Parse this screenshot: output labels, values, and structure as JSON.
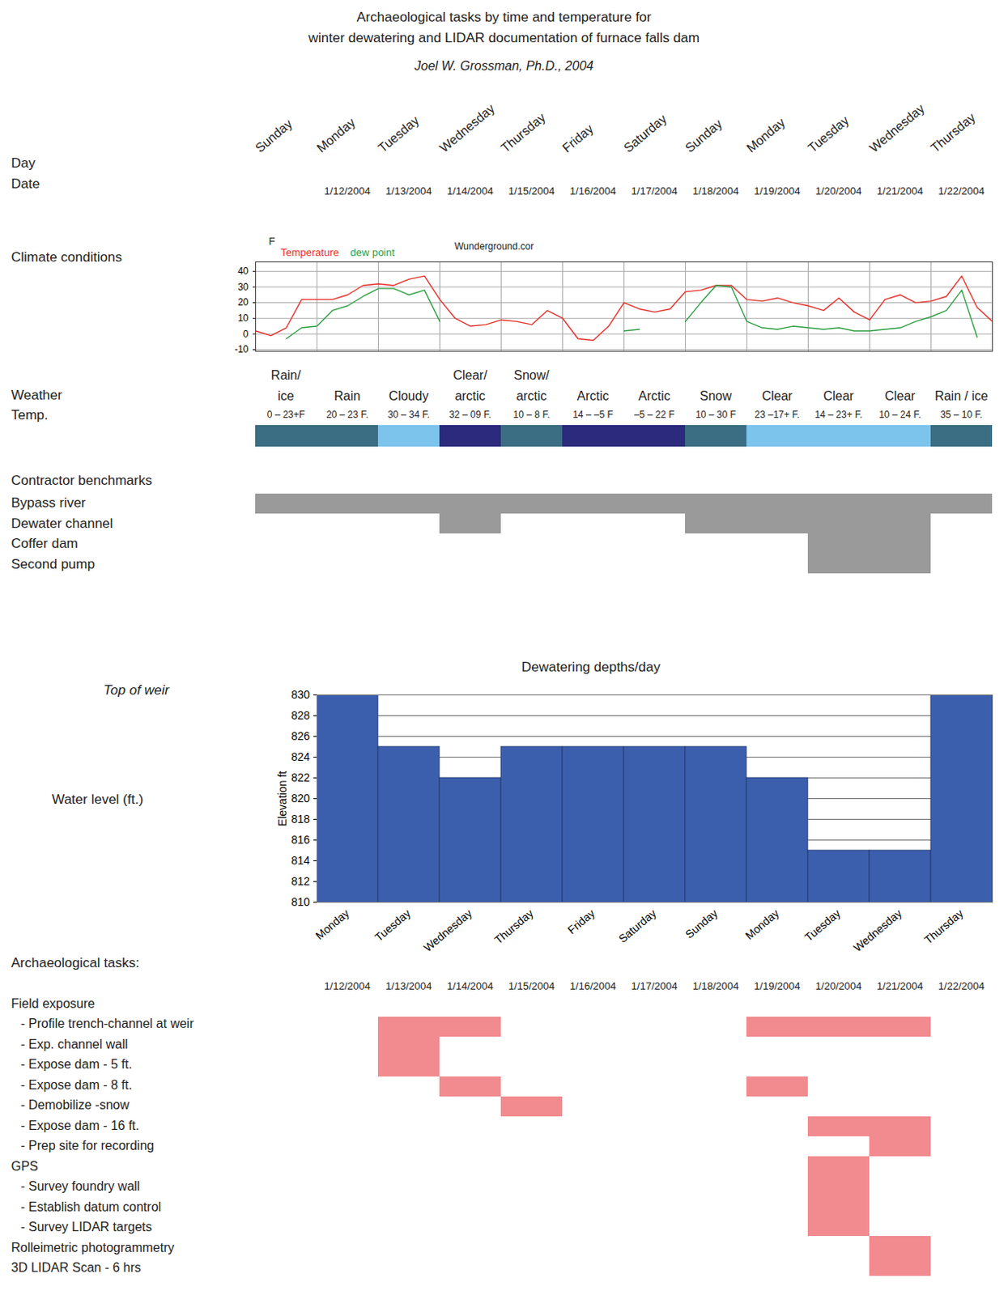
{
  "title_lines": [
    "Archaeological tasks by time and temperature for",
    "winter dewatering and LIDAR documentation of furnace falls dam"
  ],
  "subtitle": "Joel W. Grossman, Ph.D., 2004",
  "labels": {
    "day": "Day",
    "date": "Date",
    "climate": "Climate conditions",
    "weather": "Weather",
    "temp": "Temp.",
    "contractor": "Contractor benchmarks",
    "weir": "Top of weir",
    "water": "Water level (ft.)",
    "tasks": "Archaeological tasks:"
  },
  "days": [
    "Sunday",
    "Monday",
    "Tuesday",
    "Wednesday",
    "Thursday",
    "Friday",
    "Saturday",
    "Sunday",
    "Monday",
    "Tuesday",
    "Wednesday",
    "Thursday"
  ],
  "dates": [
    null,
    "1/12/2004",
    "1/13/2004",
    "1/14/2004",
    "1/15/2004",
    "1/16/2004",
    "1/17/2004",
    "1/18/2004",
    "1/19/2004",
    "1/20/2004",
    "1/21/2004",
    "1/22/2004"
  ],
  "chart_data": [
    {
      "type": "line",
      "y_label": "F",
      "annotation": "Wunderground.cor",
      "x": [
        0,
        0.25,
        0.5,
        0.75,
        1,
        1.25,
        1.5,
        1.75,
        2,
        2.25,
        2.5,
        2.75,
        3,
        3.25,
        3.5,
        3.75,
        4,
        4.25,
        4.5,
        4.75,
        5,
        5.25,
        5.5,
        5.75,
        6,
        6.25,
        6.5,
        6.75,
        7,
        7.25,
        7.5,
        7.75,
        8,
        8.25,
        8.5,
        8.75,
        9,
        9.25,
        9.5,
        9.75,
        10,
        10.25,
        10.5,
        10.75,
        11,
        11.25,
        11.5,
        11.75,
        12
      ],
      "xlim": [
        0,
        12
      ],
      "xticks": [
        0,
        1,
        2,
        3,
        4,
        5,
        6,
        7,
        8,
        9,
        10,
        11,
        12
      ],
      "ylim": [
        -11,
        46
      ],
      "yticks": [
        -10,
        0,
        10,
        20,
        30,
        40
      ],
      "grid": true,
      "tick_labels": "y",
      "legend": "top-left",
      "series": [
        {
          "name": "Temperature",
          "color": "#e8302a",
          "values": [
            2,
            -1,
            4,
            22,
            22,
            22,
            25,
            31,
            32,
            31,
            35,
            37,
            22,
            10,
            5,
            6,
            9,
            8,
            6,
            15,
            10,
            -3,
            -4,
            5,
            20,
            16,
            14,
            16,
            27,
            28,
            31,
            31,
            22,
            21,
            23,
            20,
            18,
            15,
            23,
            14,
            9,
            22,
            25,
            20,
            21,
            24,
            37,
            17,
            8
          ]
        },
        {
          "name": "dew point",
          "color": "#2ea043",
          "values": [
            null,
            null,
            -3,
            4,
            5,
            15,
            18,
            24,
            29,
            29,
            25,
            28,
            8,
            null,
            null,
            null,
            null,
            null,
            null,
            null,
            null,
            null,
            null,
            null,
            2,
            3,
            null,
            null,
            8,
            20,
            31,
            30,
            8,
            4,
            3,
            5,
            4,
            3,
            4,
            2,
            2,
            3,
            4,
            8,
            11,
            15,
            28,
            -2,
            null
          ]
        }
      ]
    },
    {
      "type": "band",
      "categories": [
        "Rain/ ice",
        "Rain",
        "Cloudy",
        "Clear/ arctic",
        "Snow/ arctic",
        "Arctic",
        "Arctic",
        "Snow",
        "Clear",
        "Clear",
        "Clear",
        "Rain / ice"
      ],
      "temperatures": [
        "0 – 23+F",
        "20 – 23 F.",
        "30 – 34 F.",
        "32 – 09 F.",
        "10 – 8 F.",
        "14 – –5 F",
        "–5 – 22 F",
        "10 – 30 F",
        "23 –17+ F.",
        "14 – 23+ F.",
        "10 – 24 F.",
        "35 – 10 F."
      ],
      "colors": [
        "#3b6e82",
        "#3b6e82",
        "#7cc4ec",
        "#2b2a7c",
        "#3b6e82",
        "#2b2a7c",
        "#2b2a7c",
        "#3b6e82",
        "#7cc4ec",
        "#7cc4ec",
        "#7cc4ec",
        "#3b6e82"
      ]
    },
    {
      "type": "gantt",
      "categories": [
        "Bypass river",
        "Dewater channel",
        "Coffer dam",
        "Second pump"
      ],
      "xlim": [
        0,
        12
      ],
      "color": "#9a9a9a",
      "tasks": [
        {
          "row": "Bypass river",
          "start": 0,
          "end": 12
        },
        {
          "row": "Dewater channel",
          "start": 3,
          "end": 4
        },
        {
          "row": "Dewater channel",
          "start": 7,
          "end": 11
        },
        {
          "row": "Coffer dam",
          "start": 9,
          "end": 11
        },
        {
          "row": "Second pump",
          "start": 9,
          "end": 11
        }
      ]
    },
    {
      "type": "bar",
      "title": "Dewatering depths/day",
      "categories": [
        "Monday",
        "Tuesday",
        "Wednesday",
        "Thursday",
        "Friday",
        "Saturday",
        "Sunday",
        "Monday",
        "Tuesday",
        "Wednesday",
        "Thursday"
      ],
      "values": [
        830,
        825,
        822,
        825,
        825,
        825,
        825,
        822,
        815,
        815,
        830
      ],
      "color": "#3c5fad",
      "y_label": "Elevation ft",
      "ylim": [
        810,
        830
      ],
      "yticks": [
        810,
        812,
        814,
        816,
        818,
        820,
        822,
        824,
        826,
        828,
        830
      ],
      "grid": true
    },
    {
      "type": "gantt",
      "categories": [
        "Field exposure",
        "- Profile trench-channel at weir",
        "- Exp. channel wall",
        "- Expose dam - 5 ft.",
        "- Expose dam - 8 ft.",
        "- Demobilize -snow",
        "- Expose dam - 16 ft.",
        "- Prep site for recording",
        "GPS",
        "- Survey foundry wall",
        "- Establish datum control",
        "- Survey LIDAR targets",
        "Rolleimetric photogrammetry",
        "3D LIDAR Scan - 6 hrs"
      ],
      "xlim": [
        0,
        12
      ],
      "color": "#f28b8f",
      "tasks": [
        {
          "row": "- Profile trench-channel at weir",
          "start": 2,
          "end": 4
        },
        {
          "row": "- Profile trench-channel at weir",
          "start": 8,
          "end": 11
        },
        {
          "row": "- Exp. channel wall",
          "start": 2,
          "end": 3
        },
        {
          "row": "- Expose dam - 5 ft.",
          "start": 2,
          "end": 3
        },
        {
          "row": "- Expose dam - 8 ft.",
          "start": 3,
          "end": 4
        },
        {
          "row": "- Expose dam - 8 ft.",
          "start": 8,
          "end": 9
        },
        {
          "row": "- Demobilize -snow",
          "start": 4,
          "end": 5
        },
        {
          "row": "- Expose dam - 16 ft.",
          "start": 9,
          "end": 11
        },
        {
          "row": "- Prep site for recording",
          "start": 10,
          "end": 11
        },
        {
          "row": "GPS",
          "start": 9,
          "end": 10
        },
        {
          "row": "- Survey foundry wall",
          "start": 9,
          "end": 10
        },
        {
          "row": "- Establish datum control",
          "start": 9,
          "end": 10
        },
        {
          "row": "- Survey LIDAR targets",
          "start": 9,
          "end": 10
        },
        {
          "row": "Rolleimetric photogrammetry",
          "start": 10,
          "end": 11
        },
        {
          "row": "3D LIDAR Scan - 6 hrs",
          "start": 10,
          "end": 11
        }
      ]
    }
  ]
}
